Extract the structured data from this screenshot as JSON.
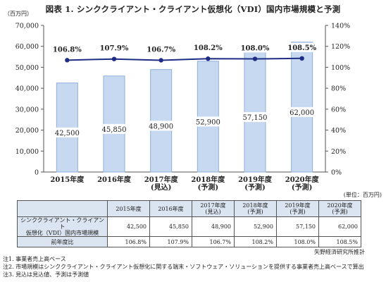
{
  "title": "図表 1. シンククライアント・クライアント仮想化（VDI）国内市場規模と予測",
  "chart_data": {
    "type": "bar",
    "categories": [
      [
        "2015年度"
      ],
      [
        "2016年度"
      ],
      [
        "2017年度",
        "(見込)"
      ],
      [
        "2018年度",
        "(予測)"
      ],
      [
        "2019年度",
        "(予測)"
      ],
      [
        "2020年度",
        "(予測)"
      ]
    ],
    "series": [
      {
        "type": "bar",
        "axis": "left",
        "values": [
          42500,
          45850,
          48900,
          52900,
          57150,
          62000
        ],
        "labels": [
          "42,500",
          "45,850",
          "48,900",
          "52,900",
          "57,150",
          "62,000"
        ]
      },
      {
        "type": "line",
        "axis": "right",
        "values": [
          106.8,
          107.9,
          106.7,
          108.2,
          108.0,
          108.5
        ],
        "labels": [
          "106.8%",
          "107.9%",
          "106.7%",
          "108.2%",
          "108.0%",
          "108.5%"
        ]
      }
    ],
    "y_left": {
      "label": "（百万円）",
      "min": 0,
      "max": 70000,
      "step": 10000,
      "ticks": [
        "0",
        "10,000",
        "20,000",
        "30,000",
        "40,000",
        "50,000",
        "60,000",
        "70,000"
      ]
    },
    "y_right": {
      "min": 0,
      "max": 140,
      "step": 20,
      "ticks": [
        "0%",
        "20%",
        "40%",
        "60%",
        "80%",
        "100%",
        "120%",
        "140%"
      ]
    },
    "grid": false,
    "colors": {
      "bar_fill": "#c6d9f1",
      "bar_edge": "#8eaedb",
      "line": "#1f2d86"
    }
  },
  "unit_note": "(単位：百万円)",
  "table": {
    "header": [
      "2015年度",
      "2016年度",
      "2017年度\n(見込)",
      "2018年度\n(予測)",
      "2019年度\n(予測)",
      "2020年度\n(予測)"
    ],
    "rows": [
      {
        "label": "シンククライアント・クライアント\n仮想化（VDI）国内市場規模",
        "cells": [
          "42,500",
          "45,850",
          "48,900",
          "52,900",
          "57,150",
          "62,000"
        ]
      },
      {
        "label": "前年度比",
        "cells": [
          "106.8%",
          "107.9%",
          "106.7%",
          "108.2%",
          "108.0%",
          "108.5%"
        ]
      }
    ]
  },
  "source": "矢野経済研究所推計",
  "notes": [
    "注1. 事業者売上高ベース",
    "注2. 市場規模はシンククライアント・クライアント仮想化に関する端末・ソフトウェア・ソリューションを提供する事業者売上高ベースで算出",
    "注3. 見込は見込値、予測は予測値"
  ]
}
